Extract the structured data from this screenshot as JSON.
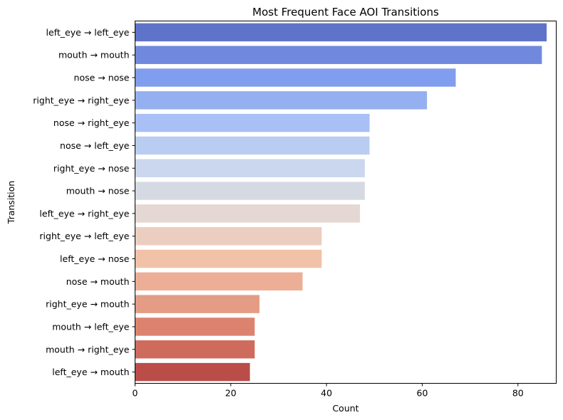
{
  "chart_data": {
    "type": "bar",
    "orientation": "horizontal",
    "title": "Most Frequent Face AOI Transitions",
    "xlabel": "Count",
    "ylabel": "Transition",
    "xlim": [
      0,
      88
    ],
    "xticks": [
      0,
      20,
      40,
      60,
      80
    ],
    "grid": false,
    "categories": [
      "left_eye → left_eye",
      "mouth → mouth",
      "nose → nose",
      "right_eye → right_eye",
      "nose → right_eye",
      "nose → left_eye",
      "right_eye → nose",
      "mouth → nose",
      "left_eye → right_eye",
      "right_eye → left_eye",
      "left_eye → nose",
      "nose → mouth",
      "right_eye → mouth",
      "mouth → left_eye",
      "mouth → right_eye",
      "left_eye → mouth"
    ],
    "values": [
      86,
      85,
      67,
      61,
      49,
      49,
      48,
      48,
      47,
      39,
      39,
      35,
      26,
      25,
      25,
      24
    ],
    "colors": [
      "#5f73c9",
      "#7189dd",
      "#819ded",
      "#95b0f0",
      "#a8c0f5",
      "#b9cdf1",
      "#cad7ee",
      "#d5dae2",
      "#e4d7d4",
      "#eccec0",
      "#f2c2a8",
      "#ecae96",
      "#e49c85",
      "#dc8370",
      "#cf6b5d",
      "#bb4d49"
    ]
  }
}
